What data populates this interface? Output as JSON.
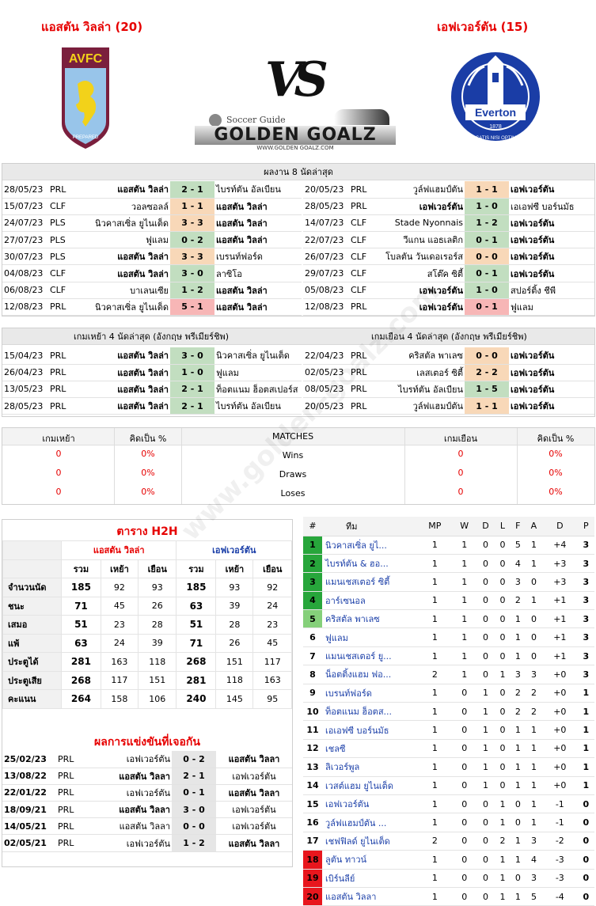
{
  "header": {
    "home_title": "แอสตัน วิลล่า (20)",
    "away_title": "เอฟเวอร์ตัน (15)",
    "vs": "VS",
    "logo_text": "GOLDEN GOALZ",
    "logo_small": "Soccer Guide",
    "logo_url": "WWW.GOLDEN GOALZ.COM",
    "avfc_text": "AVFC",
    "avfc_motto": "PREPARED",
    "everton_name": "Everton",
    "everton_year": "1878",
    "everton_motto": "NIL SATIS NISI OPTIMUM"
  },
  "recent": {
    "title": "ผลงาน 8 นัดล่าสุด",
    "home": [
      {
        "date": "28/05/23",
        "comp": "PRL",
        "home": "แอสตัน วิลล่า",
        "score": "2 - 1",
        "away": "ไบรท์ตัน อัลเบียน",
        "res": "w",
        "hb": true,
        "ab": false
      },
      {
        "date": "15/07/23",
        "comp": "CLF",
        "home": "วอลซอลล์",
        "score": "1 - 1",
        "away": "แอสตัน วิลล่า",
        "res": "d",
        "hb": false,
        "ab": true
      },
      {
        "date": "24/07/23",
        "comp": "PLS",
        "home": "นิวคาสเซิ่ล ยูไนเต็ด",
        "score": "3 - 3",
        "away": "แอสตัน วิลล่า",
        "res": "d",
        "hb": false,
        "ab": true
      },
      {
        "date": "27/07/23",
        "comp": "PLS",
        "home": "ฟูแลม",
        "score": "0 - 2",
        "away": "แอสตัน วิลล่า",
        "res": "w",
        "hb": false,
        "ab": true
      },
      {
        "date": "30/07/23",
        "comp": "PLS",
        "home": "แอสตัน วิลล่า",
        "score": "3 - 3",
        "away": "เบรนท์ฟอร์ด",
        "res": "d",
        "hb": true,
        "ab": false
      },
      {
        "date": "04/08/23",
        "comp": "CLF",
        "home": "แอสตัน วิลล่า",
        "score": "3 - 0",
        "away": "ลาซิโอ",
        "res": "w",
        "hb": true,
        "ab": false
      },
      {
        "date": "06/08/23",
        "comp": "CLF",
        "home": "บาเลนเซีย",
        "score": "1 - 2",
        "away": "แอสตัน วิลล่า",
        "res": "w",
        "hb": false,
        "ab": true
      },
      {
        "date": "12/08/23",
        "comp": "PRL",
        "home": "นิวคาสเซิ่ล ยูไนเต็ด",
        "score": "5 - 1",
        "away": "แอสตัน วิลล่า",
        "res": "l",
        "hb": false,
        "ab": true
      }
    ],
    "away": [
      {
        "date": "20/05/23",
        "comp": "PRL",
        "home": "วูล์ฟแฮมป์ตัน",
        "score": "1 - 1",
        "away": "เอฟเวอร์ตัน",
        "res": "d",
        "hb": false,
        "ab": true
      },
      {
        "date": "28/05/23",
        "comp": "PRL",
        "home": "เอฟเวอร์ตัน",
        "score": "1 - 0",
        "away": "เอเอฟซี บอร์นมัธ",
        "res": "w",
        "hb": true,
        "ab": false
      },
      {
        "date": "14/07/23",
        "comp": "CLF",
        "home": "Stade Nyonnais",
        "score": "1 - 2",
        "away": "เอฟเวอร์ตัน",
        "res": "w",
        "hb": false,
        "ab": true
      },
      {
        "date": "22/07/23",
        "comp": "CLF",
        "home": "วีแกน แอธเลติก",
        "score": "0 - 1",
        "away": "เอฟเวอร์ตัน",
        "res": "w",
        "hb": false,
        "ab": true
      },
      {
        "date": "26/07/23",
        "comp": "CLF",
        "home": "โบลตัน วันเดอเรอร์ส",
        "score": "0 - 0",
        "away": "เอฟเวอร์ตัน",
        "res": "d",
        "hb": false,
        "ab": true
      },
      {
        "date": "29/07/23",
        "comp": "CLF",
        "home": "สโต๊ค ซิตี้",
        "score": "0 - 1",
        "away": "เอฟเวอร์ตัน",
        "res": "w",
        "hb": false,
        "ab": true
      },
      {
        "date": "05/08/23",
        "comp": "CLF",
        "home": "เอฟเวอร์ตัน",
        "score": "1 - 0",
        "away": "สปอร์ติ้ง ชีพี",
        "res": "w",
        "hb": true,
        "ab": false
      },
      {
        "date": "12/08/23",
        "comp": "PRL",
        "home": "เอฟเวอร์ตัน",
        "score": "0 - 1",
        "away": "ฟูแลม",
        "res": "l",
        "hb": true,
        "ab": false
      }
    ]
  },
  "last4": {
    "home_title": "เกมเหย้า 4 นัดล่าสุด (อังกฤษ พรีเมียร์ชิพ)",
    "away_title": "เกมเยือน 4 นัดล่าสุด (อังกฤษ พรีเมียร์ชิพ)",
    "home": [
      {
        "date": "15/04/23",
        "comp": "PRL",
        "home": "แอสตัน วิลล่า",
        "score": "3 - 0",
        "away": "นิวคาสเซิ่ล ยูไนเต็ด",
        "res": "w"
      },
      {
        "date": "26/04/23",
        "comp": "PRL",
        "home": "แอสตัน วิลล่า",
        "score": "1 - 0",
        "away": "ฟูแลม",
        "res": "w"
      },
      {
        "date": "13/05/23",
        "comp": "PRL",
        "home": "แอสตัน วิลล่า",
        "score": "2 - 1",
        "away": "ท็อตแนม ฮ็อตสเปอร์ส",
        "res": "w"
      },
      {
        "date": "28/05/23",
        "comp": "PRL",
        "home": "แอสตัน วิลล่า",
        "score": "2 - 1",
        "away": "ไบรท์ตัน อัลเบียน",
        "res": "w"
      }
    ],
    "away": [
      {
        "date": "22/04/23",
        "comp": "PRL",
        "home": "คริสตัล พาเลซ",
        "score": "0 - 0",
        "away": "เอฟเวอร์ตัน",
        "res": "d"
      },
      {
        "date": "02/05/23",
        "comp": "PRL",
        "home": "เลสเตอร์ ซิตี้",
        "score": "2 - 2",
        "away": "เอฟเวอร์ตัน",
        "res": "d"
      },
      {
        "date": "08/05/23",
        "comp": "PRL",
        "home": "ไบรท์ตัน อัลเบียน",
        "score": "1 - 5",
        "away": "เอฟเวอร์ตัน",
        "res": "w"
      },
      {
        "date": "20/05/23",
        "comp": "PRL",
        "home": "วูล์ฟแฮมป์ตัน",
        "score": "1 - 1",
        "away": "เอฟเวอร์ตัน",
        "res": "d"
      }
    ]
  },
  "matches": {
    "col_home": "เกมเหย้า",
    "col_pct": "คิดเป็น %",
    "col_mid": "MATCHES",
    "col_away": "เกมเยือน",
    "col_pct2": "คิดเป็น %",
    "rows": [
      {
        "h": "0",
        "hp": "0%",
        "label": "Wins",
        "a": "0",
        "ap": "0%"
      },
      {
        "h": "0",
        "hp": "0%",
        "label": "Draws",
        "a": "0",
        "ap": "0%"
      },
      {
        "h": "0",
        "hp": "0%",
        "label": "Loses",
        "a": "0",
        "ap": "0%"
      }
    ]
  },
  "h2h": {
    "title": "ตาราง H2H",
    "home": "แอสตัน วิลล่า",
    "away": "เอฟเวอร์ตัน",
    "sub": [
      "รวม",
      "เหย้า",
      "เยือน",
      "รวม",
      "เหย้า",
      "เยือน"
    ],
    "rows": [
      {
        "label": "จำนวนนัด",
        "v": [
          "185",
          "92",
          "93",
          "185",
          "93",
          "92"
        ]
      },
      {
        "label": "ชนะ",
        "v": [
          "71",
          "45",
          "26",
          "63",
          "39",
          "24"
        ]
      },
      {
        "label": "เสมอ",
        "v": [
          "51",
          "23",
          "28",
          "51",
          "28",
          "23"
        ]
      },
      {
        "label": "แพ้",
        "v": [
          "63",
          "24",
          "39",
          "71",
          "26",
          "45"
        ]
      },
      {
        "label": "ประตูได้",
        "v": [
          "281",
          "163",
          "118",
          "268",
          "151",
          "117"
        ]
      },
      {
        "label": "ประตูเสีย",
        "v": [
          "268",
          "117",
          "151",
          "281",
          "118",
          "163"
        ]
      },
      {
        "label": "คะแนน",
        "v": [
          "264",
          "158",
          "106",
          "240",
          "145",
          "95"
        ]
      }
    ]
  },
  "meetings": {
    "title": "ผลการแข่งขันที่เจอกัน",
    "rows": [
      {
        "date": "25/02/23",
        "comp": "PRL",
        "home": "เอฟเวอร์ตัน",
        "score": "0 - 2",
        "away": "แอสตัน วิลลา",
        "hb": false,
        "ab": true
      },
      {
        "date": "13/08/22",
        "comp": "PRL",
        "home": "แอสตัน วิลลา",
        "score": "2 - 1",
        "away": "เอฟเวอร์ตัน",
        "hb": true,
        "ab": false
      },
      {
        "date": "22/01/22",
        "comp": "PRL",
        "home": "เอฟเวอร์ตัน",
        "score": "0 - 1",
        "away": "แอสตัน วิลลา",
        "hb": false,
        "ab": true
      },
      {
        "date": "18/09/21",
        "comp": "PRL",
        "home": "แอสตัน วิลลา",
        "score": "3 - 0",
        "away": "เอฟเวอร์ตัน",
        "hb": true,
        "ab": false
      },
      {
        "date": "14/05/21",
        "comp": "PRL",
        "home": "แอสตัน วิลลา",
        "score": "0 - 0",
        "away": "เอฟเวอร์ตัน",
        "hb": false,
        "ab": false
      },
      {
        "date": "02/05/21",
        "comp": "PRL",
        "home": "เอฟเวอร์ตัน",
        "score": "1 - 2",
        "away": "แอสตัน วิลลา",
        "hb": false,
        "ab": true
      }
    ]
  },
  "standings": {
    "cols": [
      "#",
      "ทีม",
      "MP",
      "W",
      "D",
      "L",
      "F",
      "A",
      "D",
      "P"
    ],
    "rows": [
      {
        "pos": "1",
        "team": "นิวคาสเซิ่ล ยูไ...",
        "mp": "1",
        "w": "1",
        "d": "0",
        "l": "0",
        "f": "5",
        "a": "1",
        "gd": "+4",
        "p": "3",
        "cls": "pg"
      },
      {
        "pos": "2",
        "team": "ไบรท์ตัน & ฮอ...",
        "mp": "1",
        "w": "1",
        "d": "0",
        "l": "0",
        "f": "4",
        "a": "1",
        "gd": "+3",
        "p": "3",
        "cls": "pg"
      },
      {
        "pos": "3",
        "team": "แมนเชสเตอร์ ซิตี้",
        "mp": "1",
        "w": "1",
        "d": "0",
        "l": "0",
        "f": "3",
        "a": "0",
        "gd": "+3",
        "p": "3",
        "cls": "pg"
      },
      {
        "pos": "4",
        "team": "อาร์เซนอล",
        "mp": "1",
        "w": "1",
        "d": "0",
        "l": "0",
        "f": "2",
        "a": "1",
        "gd": "+1",
        "p": "3",
        "cls": "pg"
      },
      {
        "pos": "5",
        "team": "คริสตัล พาเลซ",
        "mp": "1",
        "w": "1",
        "d": "0",
        "l": "0",
        "f": "1",
        "a": "0",
        "gd": "+1",
        "p": "3",
        "cls": "plg"
      },
      {
        "pos": "6",
        "team": "ฟูแลม",
        "mp": "1",
        "w": "1",
        "d": "0",
        "l": "0",
        "f": "1",
        "a": "0",
        "gd": "+1",
        "p": "3",
        "cls": ""
      },
      {
        "pos": "7",
        "team": "แมนเชสเตอร์ ยู...",
        "mp": "1",
        "w": "1",
        "d": "0",
        "l": "0",
        "f": "1",
        "a": "0",
        "gd": "+1",
        "p": "3",
        "cls": ""
      },
      {
        "pos": "8",
        "team": "น็อตติ้งแฮม ฟอ...",
        "mp": "2",
        "w": "1",
        "d": "0",
        "l": "1",
        "f": "3",
        "a": "3",
        "gd": "+0",
        "p": "3",
        "cls": ""
      },
      {
        "pos": "9",
        "team": "เบรนท์ฟอร์ด",
        "mp": "1",
        "w": "0",
        "d": "1",
        "l": "0",
        "f": "2",
        "a": "2",
        "gd": "+0",
        "p": "1",
        "cls": ""
      },
      {
        "pos": "10",
        "team": "ท็อตแนม ฮ็อตส...",
        "mp": "1",
        "w": "0",
        "d": "1",
        "l": "0",
        "f": "2",
        "a": "2",
        "gd": "+0",
        "p": "1",
        "cls": ""
      },
      {
        "pos": "11",
        "team": "เอเอฟซี บอร์นมัธ",
        "mp": "1",
        "w": "0",
        "d": "1",
        "l": "0",
        "f": "1",
        "a": "1",
        "gd": "+0",
        "p": "1",
        "cls": ""
      },
      {
        "pos": "12",
        "team": "เชลซี",
        "mp": "1",
        "w": "0",
        "d": "1",
        "l": "0",
        "f": "1",
        "a": "1",
        "gd": "+0",
        "p": "1",
        "cls": ""
      },
      {
        "pos": "13",
        "team": "ลิเวอร์พูล",
        "mp": "1",
        "w": "0",
        "d": "1",
        "l": "0",
        "f": "1",
        "a": "1",
        "gd": "+0",
        "p": "1",
        "cls": ""
      },
      {
        "pos": "14",
        "team": "เวสต์แฮม ยูไนเต็ด",
        "mp": "1",
        "w": "0",
        "d": "1",
        "l": "0",
        "f": "1",
        "a": "1",
        "gd": "+0",
        "p": "1",
        "cls": ""
      },
      {
        "pos": "15",
        "team": "เอฟเวอร์ตัน",
        "mp": "1",
        "w": "0",
        "d": "0",
        "l": "1",
        "f": "0",
        "a": "1",
        "gd": "-1",
        "p": "0",
        "cls": ""
      },
      {
        "pos": "16",
        "team": "วูล์ฟแฮมป์ตัน ...",
        "mp": "1",
        "w": "0",
        "d": "0",
        "l": "1",
        "f": "0",
        "a": "1",
        "gd": "-1",
        "p": "0",
        "cls": ""
      },
      {
        "pos": "17",
        "team": "เชฟฟิลด์ ยูไนเต็ด",
        "mp": "2",
        "w": "0",
        "d": "0",
        "l": "2",
        "f": "1",
        "a": "3",
        "gd": "-2",
        "p": "0",
        "cls": ""
      },
      {
        "pos": "18",
        "team": "ลูตัน ทาวน์",
        "mp": "1",
        "w": "0",
        "d": "0",
        "l": "1",
        "f": "1",
        "a": "4",
        "gd": "-3",
        "p": "0",
        "cls": "pr"
      },
      {
        "pos": "19",
        "team": "เบิร์นลีย์",
        "mp": "1",
        "w": "0",
        "d": "0",
        "l": "1",
        "f": "0",
        "a": "3",
        "gd": "-3",
        "p": "0",
        "cls": "pr"
      },
      {
        "pos": "20",
        "team": "แอสตัน วิลลา",
        "mp": "1",
        "w": "0",
        "d": "0",
        "l": "1",
        "f": "1",
        "a": "5",
        "gd": "-4",
        "p": "0",
        "cls": "pr"
      }
    ]
  }
}
